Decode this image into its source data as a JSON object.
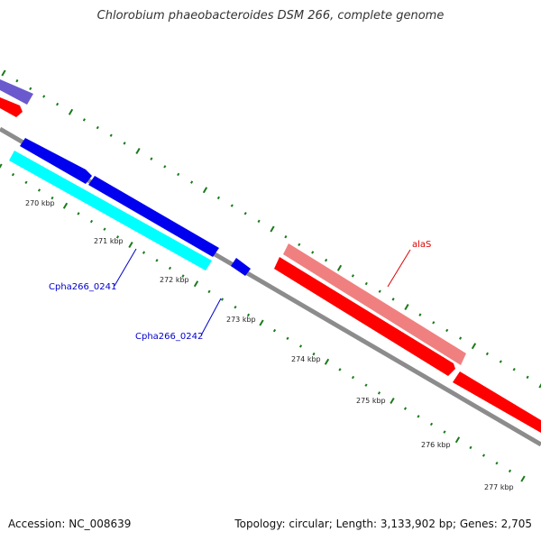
{
  "title": "Chlorobium phaeobacteroides DSM 266, complete genome",
  "footer": {
    "accession": "Accession: NC_008639",
    "topology": "Topology: circular; Length: 3,133,902 bp; Genes: 2,705"
  },
  "ticks": [
    "270 kbp",
    "271 kbp",
    "272 kbp",
    "273 kbp",
    "274 kbp",
    "275 kbp",
    "276 kbp",
    "277 kbp"
  ],
  "gene_labels": {
    "cpha_0241": "Cpha266_0241",
    "cpha_0242": "Cpha266_0242",
    "alas": "alaS"
  },
  "colors": {
    "backbone": "#8c8c8c",
    "forward_gene": "#ff0000",
    "forward_gene_light": "#f08080",
    "reverse_gene": "#0000ee",
    "reverse_gene_light": "#00ffff",
    "purple_gene": "#6a5acd",
    "tick": "#1a7a1a",
    "label_blue": "#0000cc",
    "label_red": "#dd0000"
  }
}
